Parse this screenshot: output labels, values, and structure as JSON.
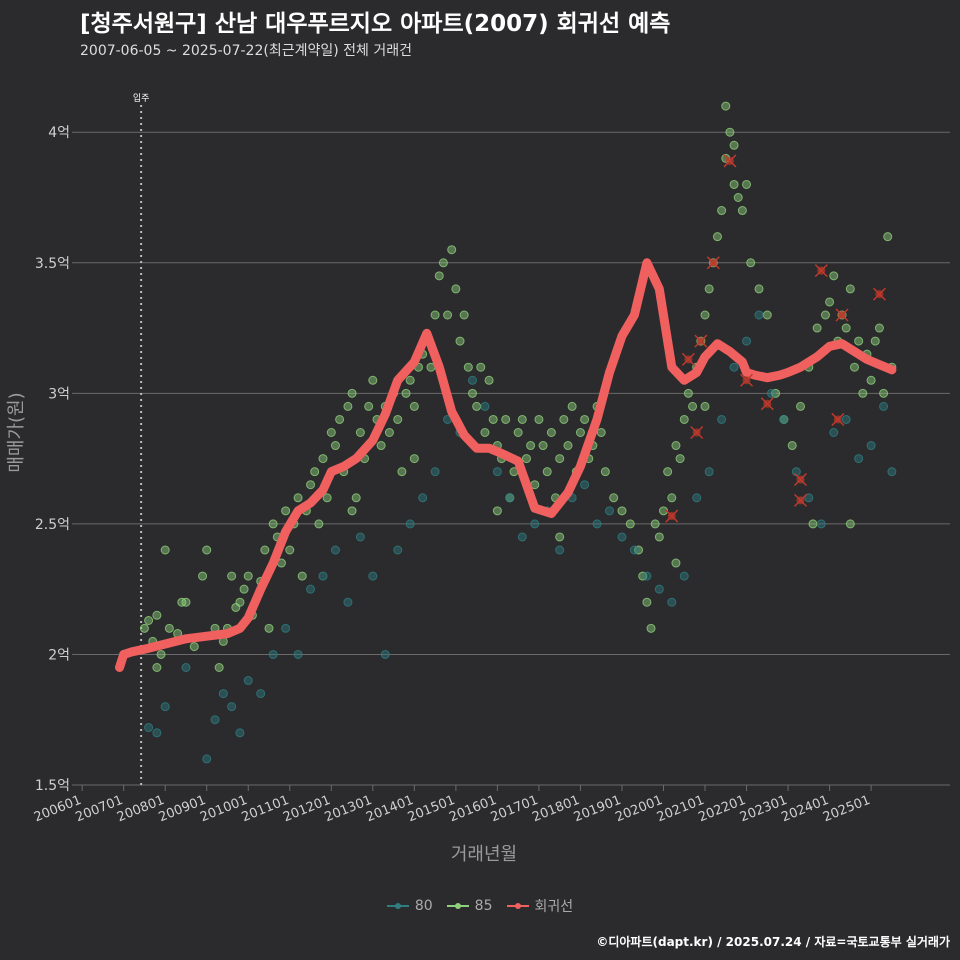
{
  "header": {
    "title": "[청주서원구] 산남 대우푸르지오 아파트(2007) 회귀선 예측",
    "subtitle": "2007-06-05 ~ 2025-07-22(최근계약일) 전체 거래건"
  },
  "footer": {
    "caption": "©디아파트(dapt.kr) / 2025.07.24 / 자료=국토교통부 실거래가"
  },
  "colors": {
    "background": "#2b2b2e",
    "grid": "#6a6a6a",
    "series_80": "#2e7d80",
    "series_85": "#8fd07a",
    "regression": "#f0605f",
    "cancelled": "#c0392b"
  },
  "chart_data": {
    "type": "scatter",
    "title": "[청주서원구] 산남 대우푸르지오 아파트(2007) 회귀선 예측",
    "subtitle": "2007-06-05 ~ 2025-07-22(최근계약일) 전체 거래건",
    "xlabel": "거래년월",
    "ylabel": "매매가(원)",
    "xlim": [
      2005.9,
      2026.9
    ],
    "ylim": [
      1.5,
      4.2
    ],
    "y_unit_label": "억",
    "grid": true,
    "legend_position": "bottom",
    "x_ticks": [
      "200601",
      "200701",
      "200801",
      "200901",
      "201001",
      "201101",
      "201201",
      "201301",
      "201401",
      "201501",
      "201601",
      "201701",
      "201801",
      "201901",
      "202001",
      "202101",
      "202201",
      "202301",
      "202401",
      "202501"
    ],
    "y_ticks": [
      {
        "value": 1.5,
        "label": "1.5억"
      },
      {
        "value": 2.0,
        "label": "2억"
      },
      {
        "value": 2.5,
        "label": "2.5억"
      },
      {
        "value": 3.0,
        "label": "3억"
      },
      {
        "value": 3.5,
        "label": "3.5억"
      },
      {
        "value": 4.0,
        "label": "4억"
      }
    ],
    "annotation": {
      "x": 2007.42,
      "label": "입주"
    },
    "legend": [
      {
        "name": "80",
        "color": "#2e7d80"
      },
      {
        "name": "85",
        "color": "#8fd07a"
      },
      {
        "name": "회귀선",
        "color": "#f0605f"
      }
    ],
    "regression_line": {
      "name": "회귀선",
      "x": [
        2006.9,
        2007.0,
        2007.2,
        2007.5,
        2008.0,
        2008.5,
        2009.0,
        2009.5,
        2009.8,
        2010.0,
        2010.3,
        2010.6,
        2010.9,
        2011.2,
        2011.5,
        2011.8,
        2012.0,
        2012.3,
        2012.6,
        2013.0,
        2013.3,
        2013.6,
        2014.0,
        2014.3,
        2014.6,
        2014.9,
        2015.0,
        2015.2,
        2015.5,
        2015.8,
        2016.1,
        2016.5,
        2016.9,
        2017.3,
        2017.7,
        2018.0,
        2018.4,
        2018.7,
        2019.0,
        2019.3,
        2019.6,
        2019.9,
        2020.2,
        2020.5,
        2020.8,
        2021.0,
        2021.3,
        2021.6,
        2021.9,
        2022.0,
        2022.2,
        2022.5,
        2022.8,
        2023.0,
        2023.3,
        2023.7,
        2024.0,
        2024.3,
        2024.6,
        2024.9,
        2025.2,
        2025.5
      ],
      "y": [
        1.95,
        2.0,
        2.01,
        2.02,
        2.04,
        2.06,
        2.07,
        2.08,
        2.1,
        2.14,
        2.25,
        2.35,
        2.47,
        2.55,
        2.58,
        2.63,
        2.7,
        2.72,
        2.75,
        2.82,
        2.92,
        3.05,
        3.12,
        3.23,
        3.1,
        2.93,
        2.9,
        2.84,
        2.79,
        2.79,
        2.77,
        2.74,
        2.56,
        2.54,
        2.62,
        2.72,
        2.9,
        3.08,
        3.22,
        3.3,
        3.5,
        3.4,
        3.1,
        3.05,
        3.08,
        3.14,
        3.19,
        3.16,
        3.12,
        3.08,
        3.07,
        3.06,
        3.07,
        3.08,
        3.1,
        3.14,
        3.18,
        3.19,
        3.16,
        3.13,
        3.11,
        3.09
      ]
    },
    "series": [
      {
        "name": "85",
        "color": "#8fd07a",
        "points": [
          [
            2007.5,
            2.1
          ],
          [
            2007.6,
            2.13
          ],
          [
            2007.7,
            2.05
          ],
          [
            2007.8,
            2.15
          ],
          [
            2007.9,
            2.0
          ],
          [
            2008.0,
            2.4
          ],
          [
            2008.1,
            2.1
          ],
          [
            2008.3,
            2.08
          ],
          [
            2008.5,
            2.2
          ],
          [
            2008.7,
            2.03
          ],
          [
            2008.9,
            2.3
          ],
          [
            2009.0,
            2.4
          ],
          [
            2009.2,
            2.1
          ],
          [
            2009.4,
            2.05
          ],
          [
            2009.5,
            2.1
          ],
          [
            2009.7,
            2.18
          ],
          [
            2009.8,
            2.2
          ],
          [
            2009.9,
            2.25
          ],
          [
            2010.0,
            2.3
          ],
          [
            2010.1,
            2.15
          ],
          [
            2010.3,
            2.28
          ],
          [
            2010.4,
            2.4
          ],
          [
            2010.6,
            2.5
          ],
          [
            2010.7,
            2.45
          ],
          [
            2010.8,
            2.35
          ],
          [
            2010.9,
            2.55
          ],
          [
            2011.0,
            2.4
          ],
          [
            2011.1,
            2.5
          ],
          [
            2011.2,
            2.6
          ],
          [
            2011.3,
            2.3
          ],
          [
            2011.4,
            2.55
          ],
          [
            2011.5,
            2.65
          ],
          [
            2011.6,
            2.7
          ],
          [
            2011.7,
            2.5
          ],
          [
            2011.8,
            2.75
          ],
          [
            2011.9,
            2.6
          ],
          [
            2012.0,
            2.85
          ],
          [
            2012.1,
            2.8
          ],
          [
            2012.2,
            2.9
          ],
          [
            2012.3,
            2.7
          ],
          [
            2012.4,
            2.95
          ],
          [
            2012.5,
            3.0
          ],
          [
            2012.6,
            2.6
          ],
          [
            2012.7,
            2.85
          ],
          [
            2012.8,
            2.75
          ],
          [
            2012.9,
            2.95
          ],
          [
            2013.0,
            3.05
          ],
          [
            2013.1,
            2.9
          ],
          [
            2013.2,
            2.8
          ],
          [
            2013.3,
            2.95
          ],
          [
            2013.4,
            2.85
          ],
          [
            2013.5,
            3.0
          ],
          [
            2013.6,
            2.9
          ],
          [
            2013.7,
            2.7
          ],
          [
            2013.8,
            3.0
          ],
          [
            2013.9,
            3.05
          ],
          [
            2014.0,
            2.95
          ],
          [
            2014.1,
            3.1
          ],
          [
            2014.2,
            3.15
          ],
          [
            2014.3,
            3.2
          ],
          [
            2014.4,
            3.1
          ],
          [
            2014.5,
            3.3
          ],
          [
            2014.6,
            3.45
          ],
          [
            2014.7,
            3.5
          ],
          [
            2014.8,
            3.3
          ],
          [
            2014.9,
            3.55
          ],
          [
            2015.0,
            3.4
          ],
          [
            2015.1,
            3.2
          ],
          [
            2015.2,
            3.3
          ],
          [
            2015.3,
            3.1
          ],
          [
            2015.4,
            3.0
          ],
          [
            2015.5,
            2.95
          ],
          [
            2015.6,
            3.1
          ],
          [
            2015.7,
            2.85
          ],
          [
            2015.8,
            3.05
          ],
          [
            2015.9,
            2.9
          ],
          [
            2016.0,
            2.8
          ],
          [
            2016.1,
            2.75
          ],
          [
            2016.2,
            2.9
          ],
          [
            2016.3,
            2.6
          ],
          [
            2016.4,
            2.7
          ],
          [
            2016.5,
            2.85
          ],
          [
            2016.6,
            2.9
          ],
          [
            2016.7,
            2.75
          ],
          [
            2016.8,
            2.8
          ],
          [
            2016.9,
            2.65
          ],
          [
            2017.0,
            2.9
          ],
          [
            2017.1,
            2.8
          ],
          [
            2017.2,
            2.7
          ],
          [
            2017.3,
            2.85
          ],
          [
            2017.4,
            2.6
          ],
          [
            2017.5,
            2.75
          ],
          [
            2017.6,
            2.9
          ],
          [
            2017.7,
            2.8
          ],
          [
            2017.8,
            2.95
          ],
          [
            2017.9,
            2.7
          ],
          [
            2018.0,
            2.85
          ],
          [
            2018.1,
            2.9
          ],
          [
            2018.2,
            2.75
          ],
          [
            2018.3,
            2.8
          ],
          [
            2018.4,
            2.95
          ],
          [
            2018.5,
            2.85
          ],
          [
            2018.6,
            2.7
          ],
          [
            2018.8,
            2.6
          ],
          [
            2019.0,
            2.55
          ],
          [
            2019.2,
            2.5
          ],
          [
            2019.4,
            2.4
          ],
          [
            2019.5,
            2.3
          ],
          [
            2019.6,
            2.2
          ],
          [
            2019.7,
            2.1
          ],
          [
            2019.8,
            2.5
          ],
          [
            2019.9,
            2.45
          ],
          [
            2020.0,
            2.55
          ],
          [
            2020.1,
            2.7
          ],
          [
            2020.2,
            2.6
          ],
          [
            2020.3,
            2.8
          ],
          [
            2020.4,
            2.75
          ],
          [
            2020.5,
            2.9
          ],
          [
            2020.6,
            3.0
          ],
          [
            2020.7,
            2.95
          ],
          [
            2020.8,
            3.1
          ],
          [
            2020.9,
            3.2
          ],
          [
            2021.0,
            3.3
          ],
          [
            2021.1,
            3.4
          ],
          [
            2021.2,
            3.5
          ],
          [
            2021.3,
            3.6
          ],
          [
            2021.4,
            3.7
          ],
          [
            2021.5,
            3.9
          ],
          [
            2021.6,
            4.0
          ],
          [
            2021.7,
            3.8
          ],
          [
            2021.8,
            3.75
          ],
          [
            2021.9,
            3.7
          ],
          [
            2022.0,
            3.8
          ],
          [
            2021.5,
            4.1
          ],
          [
            2021.7,
            3.95
          ],
          [
            2022.1,
            3.5
          ],
          [
            2022.3,
            3.4
          ],
          [
            2022.5,
            3.3
          ],
          [
            2022.7,
            3.0
          ],
          [
            2022.9,
            2.9
          ],
          [
            2023.1,
            2.8
          ],
          [
            2023.3,
            2.95
          ],
          [
            2023.5,
            3.1
          ],
          [
            2023.7,
            3.25
          ],
          [
            2023.9,
            3.3
          ],
          [
            2024.0,
            3.35
          ],
          [
            2024.1,
            3.45
          ],
          [
            2024.2,
            3.2
          ],
          [
            2024.3,
            3.3
          ],
          [
            2024.4,
            3.25
          ],
          [
            2024.5,
            3.4
          ],
          [
            2024.6,
            3.1
          ],
          [
            2024.7,
            3.2
          ],
          [
            2024.8,
            3.0
          ],
          [
            2024.9,
            3.15
          ],
          [
            2025.0,
            3.05
          ],
          [
            2025.1,
            3.2
          ],
          [
            2025.2,
            3.25
          ],
          [
            2025.3,
            3.0
          ],
          [
            2025.4,
            3.6
          ],
          [
            2025.5,
            3.1
          ],
          [
            2007.8,
            1.95
          ],
          [
            2008.4,
            2.2
          ],
          [
            2009.3,
            1.95
          ],
          [
            2009.6,
            2.3
          ],
          [
            2010.5,
            2.1
          ],
          [
            2012.5,
            2.55
          ],
          [
            2014.0,
            2.75
          ],
          [
            2016.0,
            2.55
          ],
          [
            2017.5,
            2.45
          ],
          [
            2020.3,
            2.35
          ],
          [
            2021.0,
            2.95
          ],
          [
            2023.6,
            2.5
          ],
          [
            2024.5,
            2.5
          ]
        ]
      },
      {
        "name": "80",
        "color": "#2e7d80",
        "points": [
          [
            2007.6,
            1.72
          ],
          [
            2007.8,
            1.7
          ],
          [
            2008.0,
            1.8
          ],
          [
            2008.5,
            1.95
          ],
          [
            2009.0,
            1.6
          ],
          [
            2009.2,
            1.75
          ],
          [
            2009.4,
            1.85
          ],
          [
            2009.6,
            1.8
          ],
          [
            2009.8,
            1.7
          ],
          [
            2010.0,
            1.9
          ],
          [
            2010.3,
            1.85
          ],
          [
            2010.6,
            2.0
          ],
          [
            2010.9,
            2.1
          ],
          [
            2011.2,
            2.0
          ],
          [
            2011.5,
            2.25
          ],
          [
            2011.8,
            2.3
          ],
          [
            2012.1,
            2.4
          ],
          [
            2012.4,
            2.2
          ],
          [
            2012.7,
            2.45
          ],
          [
            2013.0,
            2.3
          ],
          [
            2013.3,
            2.0
          ],
          [
            2013.6,
            2.4
          ],
          [
            2013.9,
            2.5
          ],
          [
            2014.2,
            2.6
          ],
          [
            2014.5,
            2.7
          ],
          [
            2014.8,
            2.9
          ],
          [
            2015.1,
            2.85
          ],
          [
            2015.4,
            3.05
          ],
          [
            2015.7,
            2.95
          ],
          [
            2016.0,
            2.7
          ],
          [
            2016.3,
            2.6
          ],
          [
            2016.6,
            2.45
          ],
          [
            2016.9,
            2.5
          ],
          [
            2017.2,
            2.55
          ],
          [
            2017.5,
            2.4
          ],
          [
            2017.8,
            2.6
          ],
          [
            2018.1,
            2.65
          ],
          [
            2018.4,
            2.5
          ],
          [
            2018.7,
            2.55
          ],
          [
            2019.0,
            2.45
          ],
          [
            2019.3,
            2.4
          ],
          [
            2019.6,
            2.3
          ],
          [
            2019.9,
            2.25
          ],
          [
            2020.2,
            2.2
          ],
          [
            2020.5,
            2.3
          ],
          [
            2020.8,
            2.6
          ],
          [
            2021.1,
            2.7
          ],
          [
            2021.4,
            2.9
          ],
          [
            2021.7,
            3.1
          ],
          [
            2022.0,
            3.2
          ],
          [
            2022.3,
            3.3
          ],
          [
            2022.6,
            3.0
          ],
          [
            2022.9,
            2.9
          ],
          [
            2023.2,
            2.7
          ],
          [
            2023.5,
            2.6
          ],
          [
            2023.8,
            2.5
          ],
          [
            2024.1,
            2.85
          ],
          [
            2024.4,
            2.9
          ],
          [
            2024.7,
            2.75
          ],
          [
            2025.0,
            2.8
          ],
          [
            2025.3,
            2.95
          ],
          [
            2025.5,
            2.7
          ]
        ]
      }
    ],
    "cancelled_points": [
      [
        2021.6,
        3.89
      ],
      [
        2021.2,
        3.5
      ],
      [
        2020.9,
        3.2
      ],
      [
        2020.8,
        2.85
      ],
      [
        2020.6,
        3.13
      ],
      [
        2022.0,
        3.05
      ],
      [
        2023.3,
        2.67
      ],
      [
        2023.3,
        2.59
      ],
      [
        2024.2,
        2.9
      ],
      [
        2024.3,
        3.3
      ],
      [
        2023.8,
        3.47
      ],
      [
        2025.2,
        3.38
      ],
      [
        2020.2,
        2.53
      ],
      [
        2022.5,
        2.96
      ]
    ]
  }
}
